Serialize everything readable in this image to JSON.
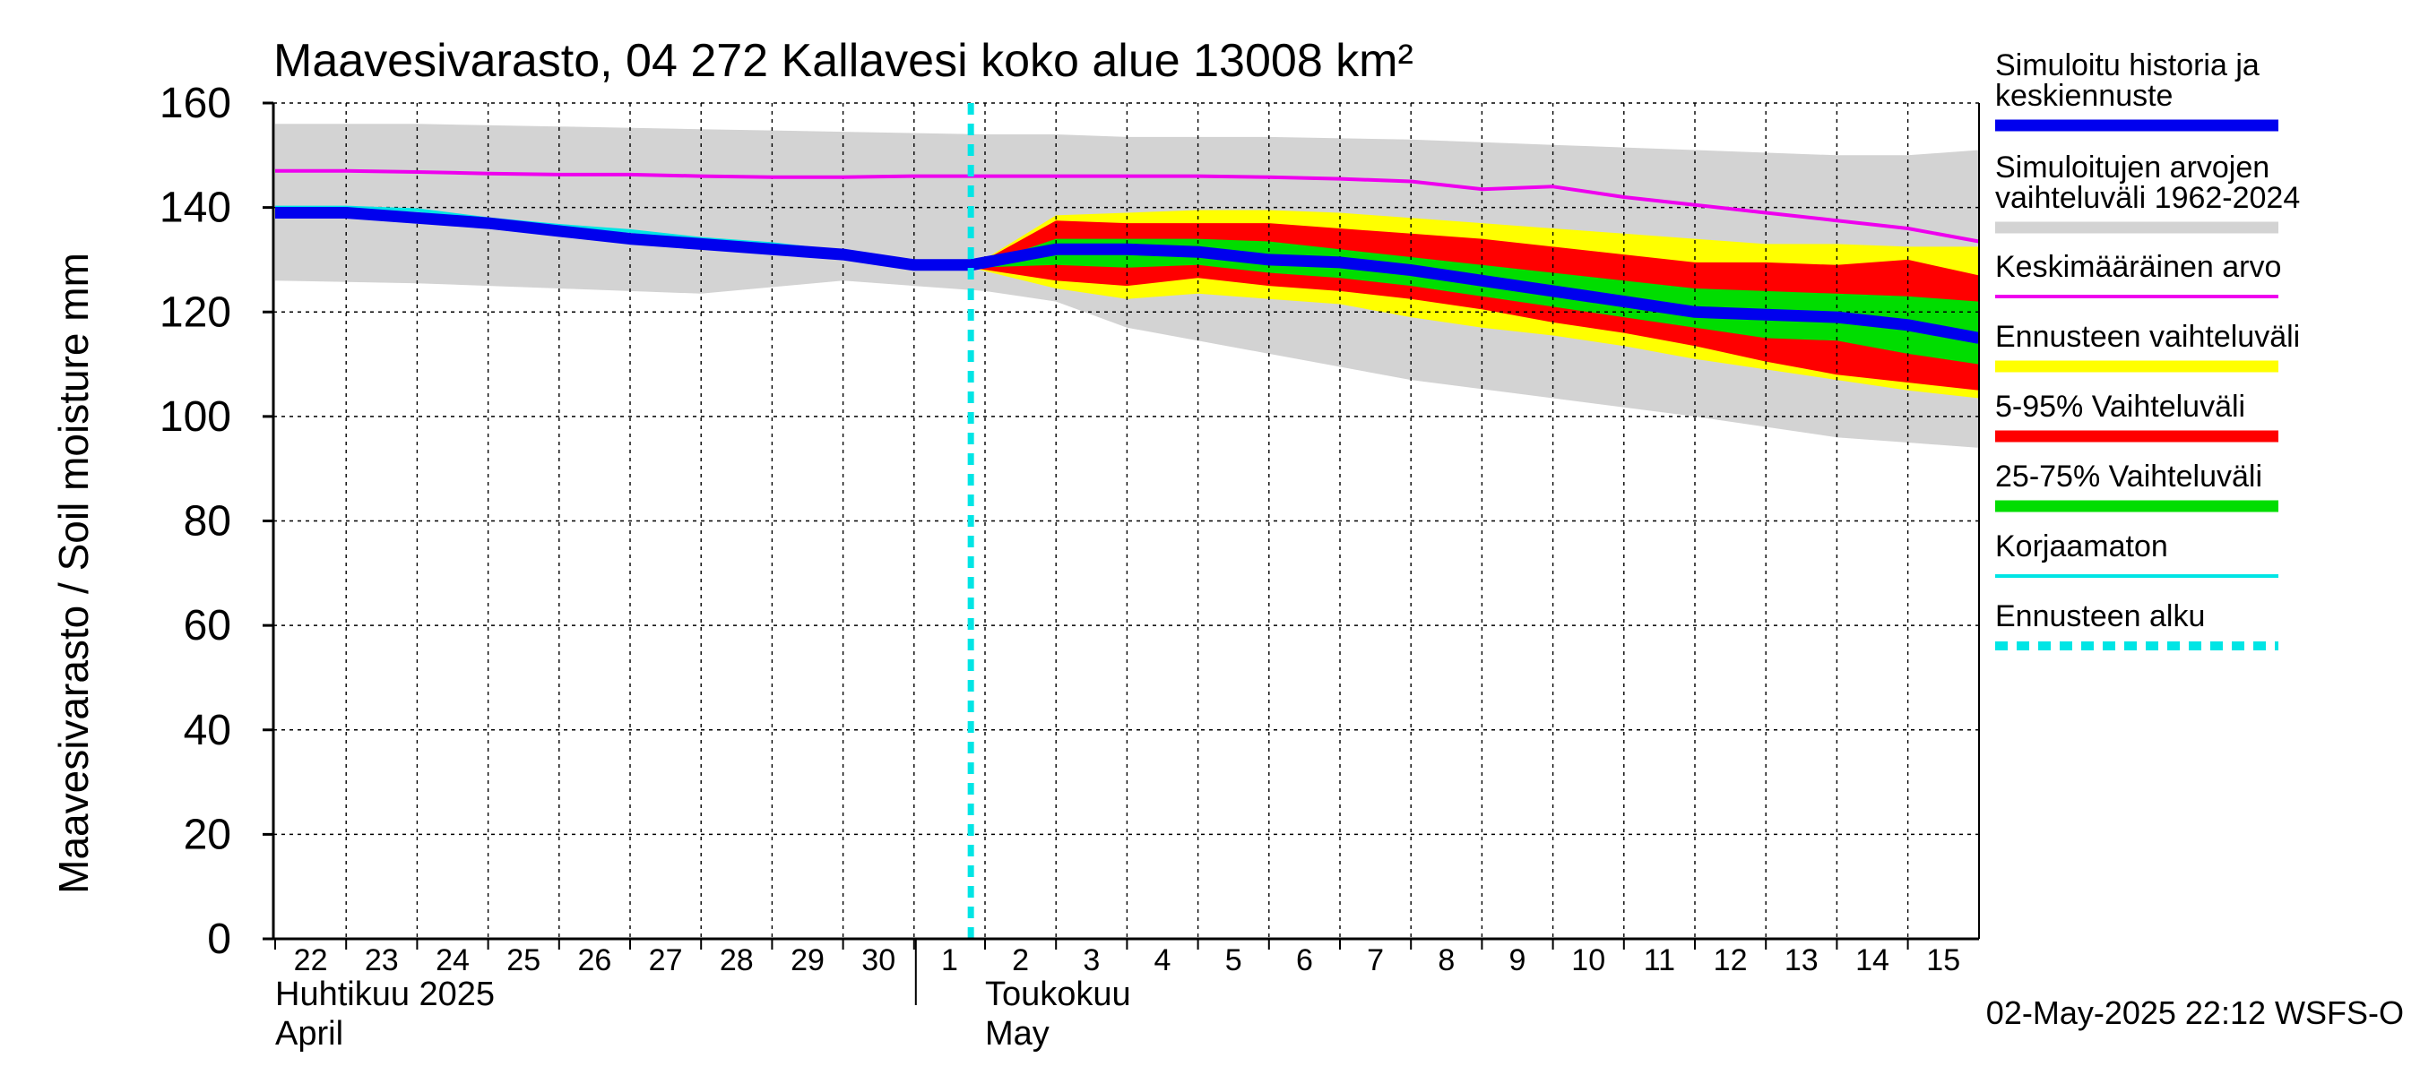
{
  "chart_data": {
    "type": "area",
    "title": "Maavesivarasto, 04 272 Kallavesi koko alue 13008 km²",
    "ylabel": "Maavesivarasto / Soil moisture   mm",
    "ylim": [
      0,
      160
    ],
    "yticks": [
      0,
      20,
      40,
      60,
      80,
      100,
      120,
      140,
      160
    ],
    "x_days": [
      "22",
      "23",
      "24",
      "25",
      "26",
      "27",
      "28",
      "29",
      "30",
      "1",
      "2",
      "3",
      "4",
      "5",
      "6",
      "7",
      "8",
      "9",
      "10",
      "11",
      "12",
      "13",
      "14",
      "15"
    ],
    "x_month_labels": [
      {
        "day_index": 0,
        "line1": "Huhtikuu  2025",
        "line2": "April"
      },
      {
        "day_index": 10,
        "line1": "Toukokuu",
        "line2": "May"
      }
    ],
    "forecast_start_day_index": 9.8,
    "series": [
      {
        "name": "Simuloitujen arvojen vaihteluväli 1962-2024",
        "kind": "band",
        "color": "#d3d3d3",
        "x": [
          0,
          2,
          4,
          6,
          8,
          10,
          11,
          12,
          14,
          16,
          18,
          20,
          22,
          23,
          24
        ],
        "upper": [
          156,
          156,
          155.5,
          155,
          154.5,
          154,
          154,
          153.5,
          153.5,
          153,
          152,
          151,
          150,
          150,
          151
        ],
        "lower": [
          126,
          125.5,
          124.5,
          123.5,
          126,
          124,
          122,
          117,
          112,
          107,
          103.5,
          100,
          96,
          95,
          94
        ]
      },
      {
        "name": "Ennusteen vaihteluväli",
        "kind": "band",
        "color": "#ffff00",
        "x": [
          9.8,
          11,
          12,
          13,
          14,
          15,
          16,
          17,
          18,
          19,
          20,
          21,
          22,
          23,
          24
        ],
        "upper": [
          128.5,
          138.5,
          139,
          139.5,
          139.5,
          139,
          138,
          137,
          136,
          135,
          134,
          133,
          133,
          132.5,
          132.5
        ],
        "lower": [
          128.5,
          124.5,
          122.5,
          123.5,
          122.5,
          121.5,
          119,
          117,
          115.5,
          113.5,
          111,
          109,
          107,
          105,
          103.5
        ]
      },
      {
        "name": "5-95% Vaihteluväli",
        "kind": "band",
        "color": "#ff0000",
        "x": [
          9.8,
          11,
          12,
          13,
          14,
          15,
          16,
          17,
          18,
          19,
          20,
          21,
          22,
          23,
          24
        ],
        "upper": [
          128.5,
          137.5,
          137,
          137,
          137,
          136,
          135,
          134,
          132.5,
          131,
          129.5,
          129.5,
          129,
          130,
          127
        ],
        "lower": [
          128.5,
          126,
          125,
          126.5,
          125,
          124,
          122.5,
          120.5,
          118,
          116,
          113.5,
          110.5,
          108,
          106.5,
          105
        ]
      },
      {
        "name": "25-75% Vaihteluväli",
        "kind": "band",
        "color": "#00dd00",
        "x": [
          9.8,
          11,
          12,
          13,
          14,
          15,
          16,
          17,
          18,
          19,
          20,
          21,
          22,
          23,
          24
        ],
        "upper": [
          128.5,
          134,
          134,
          134,
          133.5,
          132,
          130.5,
          129,
          127.5,
          126,
          124.5,
          124,
          123.5,
          123,
          122
        ],
        "lower": [
          128.5,
          129,
          128.5,
          129,
          127.5,
          126.5,
          125,
          123,
          121,
          119,
          117,
          115,
          114.5,
          112,
          110
        ]
      },
      {
        "name": "Keskimääräinen arvo",
        "kind": "line",
        "color": "#ee00ee",
        "x": [
          0,
          1,
          2,
          3,
          4,
          5,
          6,
          7,
          8,
          9,
          10,
          11,
          12,
          13,
          14,
          15,
          16,
          17,
          18,
          19,
          20,
          21,
          22,
          23,
          24
        ],
        "y": [
          147,
          147,
          146.8,
          146.5,
          146.3,
          146.3,
          146,
          145.8,
          145.8,
          146,
          146,
          146,
          146,
          146,
          145.8,
          145.5,
          145,
          143.5,
          144,
          142,
          140.5,
          139,
          137.5,
          136,
          133.5
        ]
      },
      {
        "name": "Korjaamaton",
        "kind": "line",
        "color": "#00e5e5",
        "x": [
          0,
          1,
          2,
          3,
          4,
          5,
          6,
          7,
          8,
          9,
          10
        ],
        "y": [
          140,
          140,
          139.5,
          137.8,
          136.5,
          135.5,
          134,
          133,
          131.5,
          129.5,
          129
        ]
      },
      {
        "name": "Simuloitu historia ja keskiennuste",
        "kind": "line",
        "color": "#0000ee",
        "x": [
          0,
          1,
          2,
          3,
          4,
          5,
          6,
          7,
          8,
          9,
          9.8,
          11,
          12,
          13,
          14,
          15,
          16,
          17,
          18,
          19,
          20,
          21,
          22,
          23,
          24
        ],
        "y": [
          139,
          139,
          138,
          137,
          135.5,
          134,
          133,
          132,
          131,
          129,
          129,
          132,
          132,
          131.5,
          130,
          129.5,
          128,
          126,
          124,
          122,
          120,
          119.5,
          119,
          117.5,
          115
        ]
      }
    ],
    "legend": [
      {
        "label": "Simuloitu historia ja keskiennuste",
        "color": "#0000ee",
        "style": "thick"
      },
      {
        "label": "Simuloitujen arvojen vaihteluväli 1962-2024",
        "color": "#d3d3d3",
        "style": "thick"
      },
      {
        "label": "Keskimääräinen arvo",
        "color": "#ee00ee",
        "style": "thin"
      },
      {
        "label": "Ennusteen vaihteluväli",
        "color": "#ffff00",
        "style": "thick"
      },
      {
        "label": "5-95% Vaihteluväli",
        "color": "#ff0000",
        "style": "thick"
      },
      {
        "label": "25-75% Vaihteluväli",
        "color": "#00dd00",
        "style": "thick"
      },
      {
        "label": "Korjaamaton",
        "color": "#00e5e5",
        "style": "thin"
      },
      {
        "label": "Ennusteen alku",
        "color": "#00e5e5",
        "style": "dashed"
      }
    ],
    "legend_placement": "right",
    "grid": true
  },
  "footer": {
    "timestamp": "02-May-2025 22:12 WSFS-O"
  }
}
